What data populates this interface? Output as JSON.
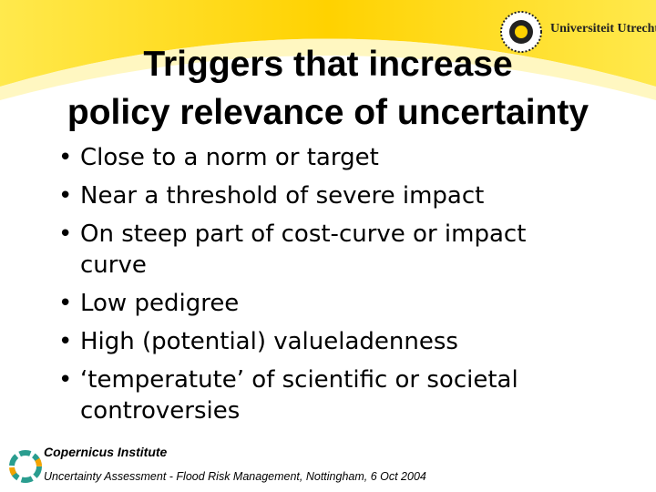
{
  "header": {
    "logo_text": "Universiteit Utrecht"
  },
  "title": [
    "Triggers that increase",
    "policy relevance of uncertainty"
  ],
  "bullets": [
    "Close to a norm or target",
    "Near a threshold of severe impact",
    "On steep part of cost-curve or impact curve",
    "Low pedigree",
    "High (potential) valueladenness",
    "‘temperatute’ of scientific or societal controversies"
  ],
  "footer": {
    "institute": "Copernicus Institute",
    "event": "Uncertainty Assessment - Flood Risk Management, Nottingham, 6 Oct 2004"
  }
}
